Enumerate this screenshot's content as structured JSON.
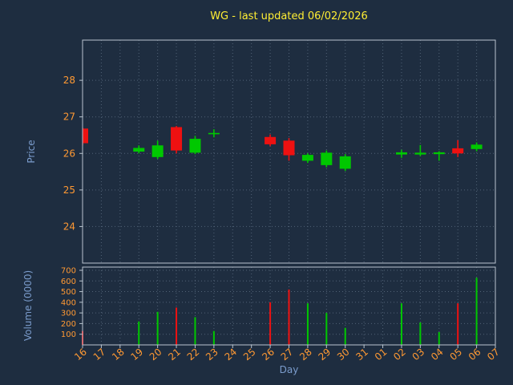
{
  "colors": {
    "background": "#1e2d40",
    "title": "#ffee33",
    "axis_label": "#7b9ccc",
    "tick_label": "#ff9933",
    "grid": "#8fa3b8",
    "spine": "#b9c4cf",
    "up": "#00c800",
    "down": "#ee1111"
  },
  "chart_data": {
    "type": "candlestick",
    "title": "WG - last updated 06/02/2026",
    "xlabel": "Day",
    "ylabel": "Price",
    "ylabel2": "Volume (0000)",
    "grid": true,
    "legend": false,
    "categories": [
      "16",
      "17",
      "18",
      "19",
      "20",
      "21",
      "22",
      "23",
      "24",
      "25",
      "26",
      "27",
      "28",
      "29",
      "30",
      "31",
      "01",
      "02",
      "03",
      "04",
      "05",
      "06",
      "07"
    ],
    "price_ticks": [
      24,
      25,
      26,
      27,
      28
    ],
    "volume_ticks": [
      100,
      200,
      300,
      400,
      500,
      600,
      700
    ],
    "price_ylim": [
      23.0,
      29.1
    ],
    "volume_ylim": [
      0,
      730
    ],
    "candles": [
      {
        "day": "16",
        "open": 26.68,
        "high": 26.7,
        "low": 26.22,
        "close": 26.28
      },
      {
        "day": "19",
        "open": 26.05,
        "high": 26.22,
        "low": 26.0,
        "close": 26.15
      },
      {
        "day": "20",
        "open": 25.9,
        "high": 26.35,
        "low": 25.85,
        "close": 26.22
      },
      {
        "day": "21",
        "open": 26.72,
        "high": 26.75,
        "low": 26.0,
        "close": 26.08
      },
      {
        "day": "22",
        "open": 26.02,
        "high": 26.48,
        "low": 25.98,
        "close": 26.4
      },
      {
        "day": "23",
        "open": 26.55,
        "high": 26.66,
        "low": 26.44,
        "close": 26.56
      },
      {
        "day": "26",
        "open": 26.45,
        "high": 26.52,
        "low": 26.2,
        "close": 26.25
      },
      {
        "day": "27",
        "open": 26.35,
        "high": 26.42,
        "low": 25.8,
        "close": 25.95
      },
      {
        "day": "28",
        "open": 25.8,
        "high": 26.0,
        "low": 25.74,
        "close": 25.96
      },
      {
        "day": "29",
        "open": 25.68,
        "high": 26.08,
        "low": 25.62,
        "close": 26.02
      },
      {
        "day": "30",
        "open": 25.58,
        "high": 25.98,
        "low": 25.52,
        "close": 25.92
      },
      {
        "day": "02",
        "open": 25.97,
        "high": 26.1,
        "low": 25.88,
        "close": 26.03
      },
      {
        "day": "03",
        "open": 25.97,
        "high": 26.23,
        "low": 25.93,
        "close": 26.02
      },
      {
        "day": "04",
        "open": 25.98,
        "high": 26.06,
        "low": 25.8,
        "close": 26.03
      },
      {
        "day": "05",
        "open": 26.14,
        "high": 26.36,
        "low": 25.9,
        "close": 26.0
      },
      {
        "day": "06",
        "open": 26.12,
        "high": 26.3,
        "low": 26.06,
        "close": 26.24
      }
    ],
    "volume": [
      {
        "day": "16",
        "value": 130
      },
      {
        "day": "19",
        "value": 220
      },
      {
        "day": "20",
        "value": 310
      },
      {
        "day": "21",
        "value": 350
      },
      {
        "day": "22",
        "value": 260
      },
      {
        "day": "23",
        "value": 130
      },
      {
        "day": "26",
        "value": 400
      },
      {
        "day": "27",
        "value": 520
      },
      {
        "day": "28",
        "value": 390
      },
      {
        "day": "29",
        "value": 300
      },
      {
        "day": "30",
        "value": 160
      },
      {
        "day": "02",
        "value": 390
      },
      {
        "day": "03",
        "value": 210
      },
      {
        "day": "04",
        "value": 120
      },
      {
        "day": "05",
        "value": 390
      },
      {
        "day": "06",
        "value": 630
      }
    ]
  }
}
